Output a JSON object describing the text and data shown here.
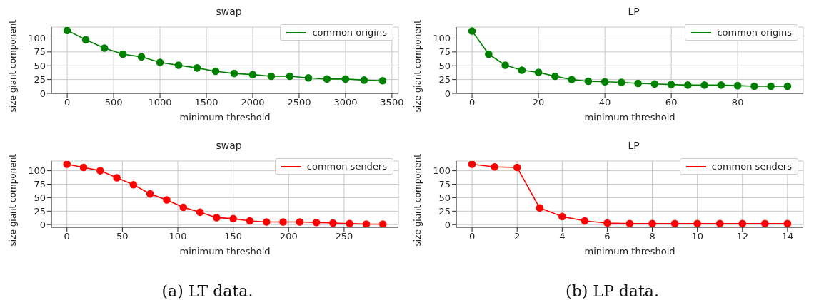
{
  "chart_data": [
    {
      "type": "line",
      "title": "swap",
      "xlabel": "minimum threshold",
      "ylabel": "size giant component",
      "x": [
        0,
        200,
        400,
        600,
        800,
        1000,
        1200,
        1400,
        1600,
        1800,
        2000,
        2200,
        2400,
        2600,
        2800,
        3000,
        3200,
        3400
      ],
      "series": [
        {
          "name": "common origins",
          "color": "#008000",
          "values": [
            114,
            97,
            82,
            71,
            66,
            56,
            51,
            46,
            40,
            36,
            34,
            31,
            31,
            28,
            26,
            26,
            24,
            23
          ]
        }
      ],
      "xlim": [
        -170,
        3570
      ],
      "xticks": [
        0,
        500,
        1000,
        1500,
        2000,
        2500,
        3000,
        3500
      ],
      "ylim": [
        0,
        120
      ],
      "yticks": [
        0,
        25,
        50,
        75,
        100
      ],
      "grid": true,
      "legend": "top right",
      "marker": "circle"
    },
    {
      "type": "line",
      "title": "LP",
      "xlabel": "minimum threshold",
      "ylabel": "size giant component",
      "x": [
        0,
        5,
        10,
        15,
        20,
        25,
        30,
        35,
        40,
        45,
        50,
        55,
        60,
        65,
        70,
        75,
        80,
        85,
        90,
        95
      ],
      "series": [
        {
          "name": "common origins",
          "color": "#008000",
          "values": [
            113,
            71,
            51,
            42,
            38,
            31,
            25,
            22,
            21,
            20,
            18,
            17,
            16,
            15,
            15,
            15,
            14,
            13,
            13,
            13
          ]
        }
      ],
      "xlim": [
        -4.75,
        99.75
      ],
      "xticks": [
        0,
        20,
        40,
        60,
        80
      ],
      "ylim": [
        0,
        120
      ],
      "yticks": [
        0,
        25,
        50,
        75,
        100
      ],
      "grid": true,
      "legend": "top right",
      "marker": "circle"
    },
    {
      "type": "line",
      "title": "swap",
      "xlabel": "minimum threshold",
      "ylabel": "size giant component",
      "x": [
        0,
        15,
        30,
        45,
        60,
        75,
        90,
        105,
        120,
        135,
        150,
        165,
        180,
        195,
        210,
        225,
        240,
        255,
        270,
        285
      ],
      "series": [
        {
          "name": "common senders",
          "color": "#ff0000",
          "values": [
            112,
            106,
            100,
            87,
            74,
            57,
            46,
            32,
            23,
            13,
            11,
            7,
            5,
            5,
            5,
            4,
            3,
            2,
            1,
            1
          ]
        }
      ],
      "xlim": [
        -14,
        299
      ],
      "xticks": [
        0,
        50,
        100,
        150,
        200,
        250
      ],
      "ylim": [
        -5,
        118
      ],
      "yticks": [
        0,
        25,
        50,
        75,
        100
      ],
      "grid": true,
      "legend": "top right",
      "marker": "circle",
      "annotations": [
        "(a) LT data."
      ]
    },
    {
      "type": "line",
      "title": "LP",
      "xlabel": "minimum threshold",
      "ylabel": "size giant component",
      "x": [
        0,
        1,
        2,
        3,
        4,
        5,
        6,
        7,
        8,
        9,
        10,
        11,
        12,
        13,
        14
      ],
      "series": [
        {
          "name": "common senders",
          "color": "#ff0000",
          "values": [
            112,
            107,
            106,
            31,
            15,
            7,
            3,
            2,
            2,
            2,
            2,
            2,
            2,
            2,
            2
          ]
        }
      ],
      "xlim": [
        -0.7,
        14.7
      ],
      "xticks": [
        0,
        2,
        4,
        6,
        8,
        10,
        12,
        14
      ],
      "ylim": [
        -5,
        118
      ],
      "yticks": [
        0,
        25,
        50,
        75,
        100
      ],
      "grid": true,
      "legend": "top right",
      "marker": "circle",
      "annotations": [
        "(b) LP data."
      ]
    }
  ]
}
